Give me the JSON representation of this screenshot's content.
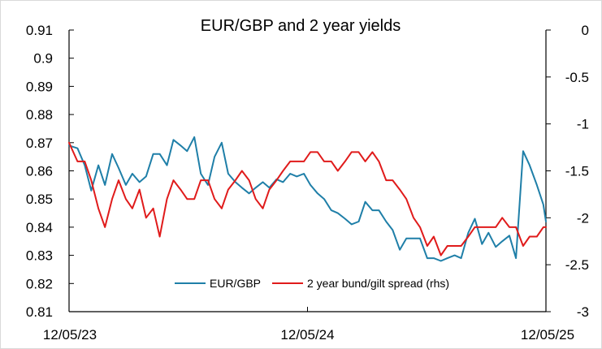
{
  "chart_data": {
    "type": "line",
    "title": "EUR/GBP and 2 year yields",
    "xlabel": "",
    "ylabel": "",
    "x_ticks": [
      "12/05/23",
      "12/05/24",
      "12/05/25"
    ],
    "x_range": [
      "2023-05-12",
      "2025-05-12"
    ],
    "y_left": {
      "lim": [
        0.81,
        0.91
      ],
      "ticks": [
        "0.91",
        "0.9",
        "0.89",
        "0.88",
        "0.87",
        "0.86",
        "0.85",
        "0.84",
        "0.83",
        "0.82",
        "0.81"
      ]
    },
    "y_right": {
      "lim": [
        -3,
        0
      ],
      "ticks": [
        "0",
        "-0.5",
        "-1",
        "-1.5",
        "-2",
        "-2.5",
        "-3"
      ]
    },
    "grid": false,
    "legend_position": "bottom-inside",
    "series": [
      {
        "name": "EUR/GBP",
        "axis": "left",
        "color": "#1f7fa8",
        "points": [
          [
            "2023-05-12",
            0.869
          ],
          [
            "2023-05-25",
            0.868
          ],
          [
            "2023-06-05",
            0.862
          ],
          [
            "2023-06-15",
            0.853
          ],
          [
            "2023-06-26",
            0.862
          ],
          [
            "2023-07-06",
            0.855
          ],
          [
            "2023-07-17",
            0.866
          ],
          [
            "2023-07-27",
            0.861
          ],
          [
            "2023-08-07",
            0.855
          ],
          [
            "2023-08-17",
            0.859
          ],
          [
            "2023-08-28",
            0.856
          ],
          [
            "2023-09-07",
            0.858
          ],
          [
            "2023-09-18",
            0.866
          ],
          [
            "2023-09-28",
            0.866
          ],
          [
            "2023-10-09",
            0.862
          ],
          [
            "2023-10-19",
            0.871
          ],
          [
            "2023-10-30",
            0.869
          ],
          [
            "2023-11-09",
            0.867
          ],
          [
            "2023-11-20",
            0.872
          ],
          [
            "2023-11-30",
            0.859
          ],
          [
            "2023-12-11",
            0.855
          ],
          [
            "2023-12-21",
            0.865
          ],
          [
            "2024-01-01",
            0.87
          ],
          [
            "2024-01-11",
            0.859
          ],
          [
            "2024-01-22",
            0.856
          ],
          [
            "2024-02-01",
            0.854
          ],
          [
            "2024-02-12",
            0.852
          ],
          [
            "2024-02-22",
            0.854
          ],
          [
            "2024-03-04",
            0.856
          ],
          [
            "2024-03-14",
            0.854
          ],
          [
            "2024-03-25",
            0.857
          ],
          [
            "2024-04-04",
            0.856
          ],
          [
            "2024-04-15",
            0.859
          ],
          [
            "2024-04-25",
            0.858
          ],
          [
            "2024-05-06",
            0.859
          ],
          [
            "2024-05-16",
            0.855
          ],
          [
            "2024-05-27",
            0.852
          ],
          [
            "2024-06-06",
            0.85
          ],
          [
            "2024-06-17",
            0.846
          ],
          [
            "2024-06-27",
            0.845
          ],
          [
            "2024-07-08",
            0.843
          ],
          [
            "2024-07-18",
            0.841
          ],
          [
            "2024-07-29",
            0.842
          ],
          [
            "2024-08-08",
            0.849
          ],
          [
            "2024-08-19",
            0.846
          ],
          [
            "2024-08-29",
            0.846
          ],
          [
            "2024-09-09",
            0.842
          ],
          [
            "2024-09-19",
            0.839
          ],
          [
            "2024-09-30",
            0.832
          ],
          [
            "2024-10-10",
            0.836
          ],
          [
            "2024-10-21",
            0.836
          ],
          [
            "2024-10-31",
            0.836
          ],
          [
            "2024-11-11",
            0.829
          ],
          [
            "2024-11-21",
            0.829
          ],
          [
            "2024-12-02",
            0.828
          ],
          [
            "2024-12-12",
            0.829
          ],
          [
            "2024-12-23",
            0.83
          ],
          [
            "2025-01-02",
            0.829
          ],
          [
            "2025-01-13",
            0.838
          ],
          [
            "2025-01-23",
            0.843
          ],
          [
            "2025-02-03",
            0.834
          ],
          [
            "2025-02-13",
            0.838
          ],
          [
            "2025-02-24",
            0.833
          ],
          [
            "2025-03-06",
            0.835
          ],
          [
            "2025-03-17",
            0.837
          ],
          [
            "2025-03-27",
            0.829
          ],
          [
            "2025-04-07",
            0.867
          ],
          [
            "2025-04-17",
            0.862
          ],
          [
            "2025-04-28",
            0.855
          ],
          [
            "2025-05-08",
            0.848
          ],
          [
            "2025-05-12",
            0.842
          ]
        ]
      },
      {
        "name": "2 year bund/gilt spread (rhs)",
        "axis": "right",
        "color": "#e01b1b",
        "points": [
          [
            "2023-05-12",
            -1.2
          ],
          [
            "2023-05-25",
            -1.4
          ],
          [
            "2023-06-05",
            -1.4
          ],
          [
            "2023-06-15",
            -1.6
          ],
          [
            "2023-06-26",
            -1.9
          ],
          [
            "2023-07-06",
            -2.1
          ],
          [
            "2023-07-17",
            -1.8
          ],
          [
            "2023-07-27",
            -1.6
          ],
          [
            "2023-08-07",
            -1.8
          ],
          [
            "2023-08-17",
            -1.9
          ],
          [
            "2023-08-28",
            -1.7
          ],
          [
            "2023-09-07",
            -2.0
          ],
          [
            "2023-09-18",
            -1.9
          ],
          [
            "2023-09-28",
            -2.2
          ],
          [
            "2023-10-09",
            -1.8
          ],
          [
            "2023-10-19",
            -1.6
          ],
          [
            "2023-10-30",
            -1.7
          ],
          [
            "2023-11-09",
            -1.8
          ],
          [
            "2023-11-20",
            -1.8
          ],
          [
            "2023-11-30",
            -1.6
          ],
          [
            "2023-12-11",
            -1.6
          ],
          [
            "2023-12-21",
            -1.8
          ],
          [
            "2024-01-01",
            -1.9
          ],
          [
            "2024-01-11",
            -1.7
          ],
          [
            "2024-01-22",
            -1.6
          ],
          [
            "2024-02-01",
            -1.5
          ],
          [
            "2024-02-12",
            -1.6
          ],
          [
            "2024-02-22",
            -1.8
          ],
          [
            "2024-03-04",
            -1.9
          ],
          [
            "2024-03-14",
            -1.7
          ],
          [
            "2024-03-25",
            -1.6
          ],
          [
            "2024-04-04",
            -1.5
          ],
          [
            "2024-04-15",
            -1.4
          ],
          [
            "2024-04-25",
            -1.4
          ],
          [
            "2024-05-06",
            -1.4
          ],
          [
            "2024-05-16",
            -1.3
          ],
          [
            "2024-05-27",
            -1.3
          ],
          [
            "2024-06-06",
            -1.4
          ],
          [
            "2024-06-17",
            -1.4
          ],
          [
            "2024-06-27",
            -1.5
          ],
          [
            "2024-07-08",
            -1.4
          ],
          [
            "2024-07-18",
            -1.3
          ],
          [
            "2024-07-29",
            -1.3
          ],
          [
            "2024-08-08",
            -1.4
          ],
          [
            "2024-08-19",
            -1.3
          ],
          [
            "2024-08-29",
            -1.4
          ],
          [
            "2024-09-09",
            -1.6
          ],
          [
            "2024-09-19",
            -1.6
          ],
          [
            "2024-09-30",
            -1.7
          ],
          [
            "2024-10-10",
            -1.8
          ],
          [
            "2024-10-21",
            -2.0
          ],
          [
            "2024-10-31",
            -2.1
          ],
          [
            "2024-11-11",
            -2.3
          ],
          [
            "2024-11-21",
            -2.2
          ],
          [
            "2024-12-02",
            -2.4
          ],
          [
            "2024-12-12",
            -2.3
          ],
          [
            "2024-12-23",
            -2.3
          ],
          [
            "2025-01-02",
            -2.3
          ],
          [
            "2025-01-13",
            -2.2
          ],
          [
            "2025-01-23",
            -2.1
          ],
          [
            "2025-02-03",
            -2.1
          ],
          [
            "2025-02-13",
            -2.1
          ],
          [
            "2025-02-24",
            -2.1
          ],
          [
            "2025-03-06",
            -2.0
          ],
          [
            "2025-03-17",
            -2.1
          ],
          [
            "2025-03-27",
            -2.1
          ],
          [
            "2025-04-07",
            -2.3
          ],
          [
            "2025-04-17",
            -2.2
          ],
          [
            "2025-04-28",
            -2.2
          ],
          [
            "2025-05-08",
            -2.1
          ],
          [
            "2025-05-12",
            -2.1
          ]
        ]
      }
    ]
  }
}
